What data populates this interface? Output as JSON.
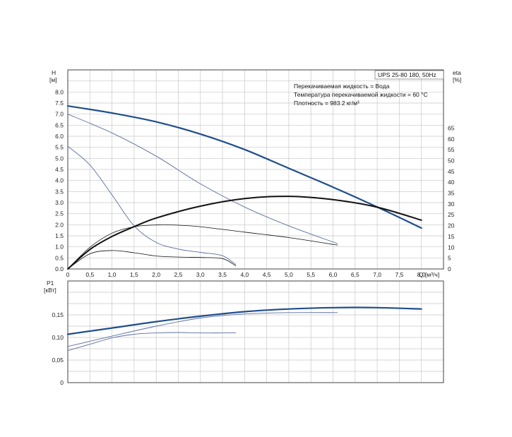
{
  "chart_data": [
    {
      "type": "line",
      "title_box": "UPS 25-80 180, 50Hz",
      "annotations": [
        "Перекачиваемая жидкость = Вода",
        "Температура перекачиваемой жидкости = 60 °C",
        "Плотность = 983.2 кг/м³"
      ],
      "ylabel": "H",
      "yunit": "[м]",
      "y2label": "eta",
      "y2unit": "[%]",
      "xlabel": "Q",
      "xunit": "[м³/ч]",
      "xlim": [
        0,
        8.5
      ],
      "ylim": [
        0,
        8.0
      ],
      "y2lim": [
        0,
        65
      ],
      "x_ticks": [
        "0",
        "0,5",
        "1,0",
        "1,5",
        "2,0",
        "2,5",
        "3,0",
        "3,5",
        "4,0",
        "4,5",
        "5,0",
        "5,5",
        "6,0",
        "6,5",
        "7,0",
        "7,5",
        "8,0"
      ],
      "y_ticks": [
        "0.0",
        "0.5",
        "1.0",
        "1.5",
        "2.0",
        "2.5",
        "3.0",
        "3.5",
        "4.0",
        "4.5",
        "5.0",
        "5.5",
        "6.0",
        "6.5",
        "7.0",
        "7.5",
        "8.0"
      ],
      "y2_ticks": [
        "0",
        "5",
        "10",
        "15",
        "20",
        "25",
        "30",
        "35",
        "40",
        "45",
        "50",
        "55",
        "60",
        "65"
      ],
      "grid": true,
      "series": [
        {
          "axis": "H",
          "color": "#1f4e8c",
          "width": 2.2,
          "x": [
            0,
            1.0,
            2.0,
            3.0,
            4.0,
            5.0,
            6.0,
            7.0,
            8.0
          ],
          "y": [
            7.37,
            7.05,
            6.65,
            6.1,
            5.4,
            4.55,
            3.7,
            2.8,
            1.85
          ]
        },
        {
          "axis": "H",
          "color": "#5a6e9c",
          "width": 0.9,
          "x": [
            0,
            1.0,
            2.0,
            3.0,
            4.0,
            5.0,
            6.1
          ],
          "y": [
            7.0,
            6.15,
            5.1,
            3.85,
            2.8,
            1.95,
            1.15
          ]
        },
        {
          "axis": "H",
          "color": "#5a6e9c",
          "width": 0.9,
          "x": [
            0,
            0.5,
            1.0,
            1.5,
            2.0,
            2.5,
            3.0,
            3.5,
            3.8
          ],
          "y": [
            5.55,
            4.7,
            3.35,
            1.95,
            1.2,
            0.9,
            0.75,
            0.6,
            0.2
          ]
        },
        {
          "axis": "eta",
          "color": "#111111",
          "width": 2.0,
          "x": [
            0,
            0.5,
            1.0,
            1.5,
            2.0,
            3.0,
            4.0,
            5.0,
            6.0,
            7.0,
            8.0
          ],
          "y": [
            0,
            9,
            15,
            19.5,
            23.5,
            29,
            32.5,
            33.5,
            32,
            28.5,
            22.5
          ]
        },
        {
          "axis": "eta",
          "color": "#111111",
          "width": 0.8,
          "x": [
            0,
            0.5,
            1.0,
            1.5,
            2.0,
            2.5,
            3.0,
            4.0,
            5.0,
            6.1
          ],
          "y": [
            0,
            10,
            16.5,
            19.5,
            20.3,
            20.2,
            19.5,
            17,
            14.5,
            11
          ]
        },
        {
          "axis": "eta",
          "color": "#111111",
          "width": 0.8,
          "x": [
            0,
            0.5,
            1.0,
            1.5,
            2.0,
            2.5,
            3.0,
            3.5,
            3.8
          ],
          "y": [
            0,
            7,
            8.5,
            7.5,
            6,
            5.5,
            5.3,
            4.8,
            1.5
          ]
        }
      ]
    },
    {
      "type": "line",
      "ylabel": "P1",
      "yunit": "[кВт]",
      "xlim": [
        0,
        8.5
      ],
      "ylim": [
        0,
        0.2
      ],
      "y_ticks": [
        "0",
        "0,05",
        "0,10",
        "0,15"
      ],
      "grid": true,
      "series": [
        {
          "color": "#1f4e8c",
          "width": 2.2,
          "x": [
            0,
            1.0,
            2.0,
            3.0,
            4.0,
            5.0,
            6.0,
            7.0,
            8.0
          ],
          "y": [
            0.107,
            0.121,
            0.135,
            0.147,
            0.157,
            0.163,
            0.166,
            0.166,
            0.163
          ]
        },
        {
          "color": "#5a6e9c",
          "width": 0.9,
          "x": [
            0,
            1.0,
            2.0,
            3.0,
            4.0,
            5.0,
            6.1
          ],
          "y": [
            0.08,
            0.103,
            0.125,
            0.143,
            0.152,
            0.155,
            0.155
          ]
        },
        {
          "color": "#5a6e9c",
          "width": 0.9,
          "x": [
            0,
            0.5,
            1.0,
            1.5,
            2.0,
            2.5,
            3.0,
            3.5,
            3.8
          ],
          "y": [
            0.071,
            0.085,
            0.099,
            0.107,
            0.11,
            0.111,
            0.11,
            0.11,
            0.11
          ]
        }
      ]
    }
  ]
}
